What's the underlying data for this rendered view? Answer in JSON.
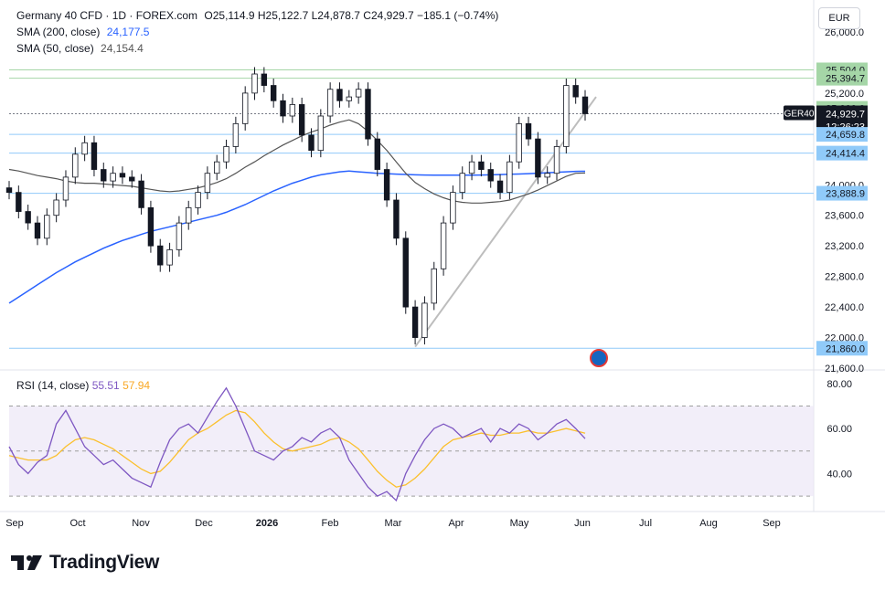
{
  "header": {
    "symbol": "Germany 40 CFD · 1D · FOREX.com",
    "ohlc": "O25,114.9  H25,122.7  L24,878.7  C24,929.7  −185.1 (−0.74%)",
    "sma200_label": "SMA (200, close)",
    "sma200_value": "24,177.5",
    "sma50_label": "SMA (50, close)",
    "sma50_value": "24,154.4",
    "currency": "EUR"
  },
  "colors": {
    "up": "#131722",
    "down": "#131722",
    "sma200": "#2962ff",
    "sma50": "#555555",
    "rsi": "#7e57c2",
    "rsi_ma": "#fbc02d",
    "level_green": "#a5d6a7",
    "level_blue": "#90caf9",
    "trendline": "#bdbdbd"
  },
  "brand": {
    "name": "TradingView"
  },
  "chart_data": [
    {
      "type": "candlestick",
      "title": "Germany 40 CFD · 1D · FOREX.com",
      "ylim": [
        21600,
        26000
      ],
      "y_ticks": [
        "26,000.0",
        "25,200.0",
        "24,000.0",
        "23,600.0",
        "23,200.0",
        "22,800.0",
        "22,400.0",
        "22,000.0",
        "21,600.0"
      ],
      "x_ticks": [
        "Sep",
        "Oct",
        "Nov",
        "Dec",
        "2026",
        "Feb",
        "Mar",
        "Apr",
        "May",
        "Jun",
        "Jul",
        "Aug",
        "Sep"
      ],
      "price_labels": [
        {
          "text": "25,504.0",
          "value": 25504,
          "style": "green"
        },
        {
          "text": "25,394.7",
          "value": 25394.7,
          "style": "green"
        },
        {
          "text": "25,000.0",
          "value": 25000,
          "style": "green"
        },
        {
          "text": "24,929.7",
          "value": 24929.7,
          "style": "current",
          "name": "GER40",
          "countdown": "12:26:23"
        },
        {
          "text": "24,659.8",
          "value": 24659.8,
          "style": "blue"
        },
        {
          "text": "24,414.4",
          "value": 24414.4,
          "style": "blue"
        },
        {
          "text": "23,888.9",
          "value": 23888.9,
          "style": "blue"
        },
        {
          "text": "21,860.0",
          "value": 21860,
          "style": "blue"
        }
      ],
      "levels": [
        25504,
        25394.7,
        24659.8,
        24414.4,
        23888.9,
        21860
      ],
      "close_series": [
        23900,
        23650,
        23500,
        23300,
        23600,
        23800,
        24100,
        24400,
        24550,
        24200,
        24050,
        24150,
        24100,
        24050,
        23700,
        23200,
        22950,
        23150,
        23500,
        23700,
        23900,
        24150,
        24300,
        24500,
        24800,
        25200,
        25450,
        25300,
        25100,
        24900,
        25050,
        24650,
        24450,
        24900,
        25250,
        25100,
        25150,
        25250,
        24600,
        24200,
        23800,
        23300,
        22400,
        22000,
        22450,
        22900,
        23500,
        23900,
        24150,
        24300,
        24200,
        24050,
        23900,
        24300,
        24800,
        24600,
        24100,
        24150,
        24500,
        25300,
        25150,
        24930
      ],
      "sma50_series": [
        24200,
        24180,
        24150,
        24120,
        24100,
        24080,
        24050,
        24030,
        24020,
        24020,
        24010,
        24000,
        23990,
        23980,
        23960,
        23940,
        23920,
        23910,
        23920,
        23940,
        23960,
        23990,
        24030,
        24080,
        24150,
        24230,
        24300,
        24380,
        24450,
        24520,
        24580,
        24640,
        24690,
        24730,
        24780,
        24820,
        24850,
        24800,
        24700,
        24580,
        24450,
        24300,
        24150,
        24030,
        23950,
        23880,
        23830,
        23790,
        23770,
        23760,
        23760,
        23770,
        23780,
        23800,
        23840,
        23880,
        23930,
        23990,
        24050,
        24110,
        24150,
        24154
      ],
      "sma200_series": [
        22450,
        22530,
        22610,
        22690,
        22770,
        22850,
        22920,
        22990,
        23050,
        23110,
        23170,
        23220,
        23270,
        23310,
        23350,
        23390,
        23420,
        23450,
        23480,
        23510,
        23540,
        23570,
        23600,
        23640,
        23690,
        23740,
        23800,
        23860,
        23920,
        23970,
        24020,
        24060,
        24100,
        24130,
        24150,
        24170,
        24180,
        24170,
        24160,
        24150,
        24145,
        24140,
        24135,
        24130,
        24128,
        24126,
        24125,
        24125,
        24125,
        24126,
        24128,
        24130,
        24133,
        24137,
        24141,
        24146,
        24152,
        24158,
        24164,
        24170,
        24175,
        24177
      ]
    },
    {
      "type": "line",
      "title": "RSI (14, close)",
      "rsi_value": "55.51",
      "rsi_ma_value": "57.94",
      "y_ticks": [
        "80.00",
        "60.00",
        "40.00"
      ],
      "ylim": [
        28,
        84
      ],
      "bands": [
        70,
        50,
        30
      ],
      "rsi_series": [
        52,
        44,
        40,
        45,
        48,
        62,
        68,
        60,
        52,
        48,
        44,
        46,
        42,
        38,
        36,
        34,
        45,
        55,
        60,
        62,
        58,
        65,
        72,
        78,
        70,
        60,
        50,
        48,
        46,
        50,
        52,
        56,
        54,
        58,
        60,
        56,
        46,
        40,
        34,
        30,
        32,
        28,
        40,
        48,
        55,
        60,
        62,
        60,
        56,
        58,
        60,
        54,
        60,
        58,
        62,
        60,
        55,
        58,
        62,
        64,
        60,
        55.51
      ],
      "rsi_ma_series": [
        48,
        47,
        46,
        46,
        46,
        48,
        52,
        55,
        56,
        55,
        53,
        51,
        48,
        45,
        42,
        40,
        41,
        45,
        50,
        55,
        58,
        60,
        63,
        66,
        68,
        67,
        63,
        58,
        54,
        51,
        50,
        51,
        52,
        53,
        55,
        56,
        54,
        51,
        46,
        41,
        37,
        34,
        35,
        38,
        42,
        47,
        52,
        55,
        56,
        57,
        58,
        57,
        57,
        58,
        58,
        59,
        58,
        58,
        59,
        60,
        59,
        57.94
      ]
    }
  ]
}
